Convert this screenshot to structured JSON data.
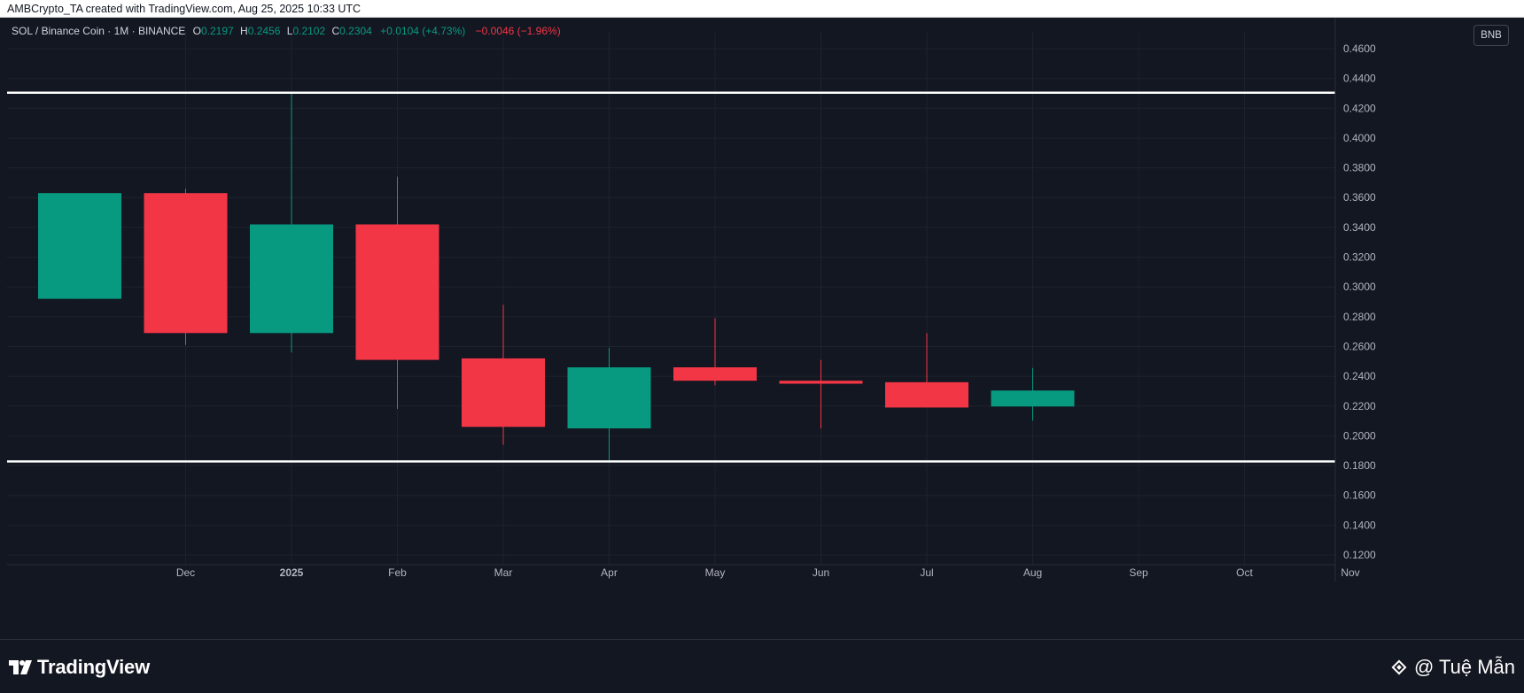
{
  "header": {
    "credit_line": "AMBCrypto_TA created with TradingView.com, Aug 25, 2025 10:33 UTC"
  },
  "legend": {
    "symbol": "SOL / Binance Coin · 1M · BINANCE",
    "open_label": "O",
    "open_value": "0.2197",
    "high_label": "H",
    "high_value": "0.2456",
    "low_label": "L",
    "low_value": "0.2102",
    "close_label": "C",
    "close_value": "0.2304",
    "change": "+0.0104 (+4.73%)",
    "change2": "−0.0046 (−1.96%)"
  },
  "currency_badge": "BNB",
  "footer": {
    "brand": "TradingView",
    "author": "@ Tuệ Mẫn"
  },
  "colors": {
    "background": "#131722",
    "up": "#089981",
    "down": "#f23645",
    "grid": "#1e222d",
    "axis_text": "#b2b5be",
    "level_line": "#ffffff"
  },
  "chart_data": {
    "type": "candlestick",
    "y_ticks": [
      "0.4600",
      "0.4400",
      "0.4200",
      "0.4000",
      "0.3800",
      "0.3600",
      "0.3400",
      "0.3200",
      "0.3000",
      "0.2800",
      "0.2600",
      "0.2400",
      "0.2200",
      "0.2000",
      "0.1800",
      "0.1600",
      "0.1400",
      "0.1200"
    ],
    "ylim": [
      0.12,
      0.46
    ],
    "x_ticks": [
      "Dec",
      "2025",
      "Feb",
      "Mar",
      "Apr",
      "May",
      "Jun",
      "Jul",
      "Aug",
      "Sep",
      "Oct",
      "Nov"
    ],
    "candles": [
      {
        "month": "Nov",
        "open": 0.292,
        "high": 0.363,
        "low": 0.292,
        "close": 0.363
      },
      {
        "month": "Dec",
        "open": 0.363,
        "high": 0.366,
        "low": 0.261,
        "close": 0.269
      },
      {
        "month": "2025",
        "open": 0.269,
        "high": 0.43,
        "low": 0.256,
        "close": 0.342
      },
      {
        "month": "Feb",
        "open": 0.342,
        "high": 0.374,
        "low": 0.218,
        "close": 0.251
      },
      {
        "month": "Mar",
        "open": 0.252,
        "high": 0.288,
        "low": 0.194,
        "close": 0.206
      },
      {
        "month": "Apr",
        "open": 0.205,
        "high": 0.259,
        "low": 0.182,
        "close": 0.246
      },
      {
        "month": "May",
        "open": 0.246,
        "high": 0.279,
        "low": 0.234,
        "close": 0.237
      },
      {
        "month": "Jun",
        "open": 0.237,
        "high": 0.251,
        "low": 0.205,
        "close": 0.235
      },
      {
        "month": "Jul",
        "open": 0.236,
        "high": 0.269,
        "low": 0.219,
        "close": 0.219
      },
      {
        "month": "Aug",
        "open": 0.2197,
        "high": 0.2456,
        "low": 0.2102,
        "close": 0.2304
      }
    ],
    "horizontal_levels": [
      {
        "value": 0.4304,
        "label": "0.4304"
      },
      {
        "value": 0.1828,
        "label": "0.1828"
      }
    ],
    "last_price": {
      "value": 0.2304,
      "label": "0.2304"
    },
    "grid": true
  }
}
